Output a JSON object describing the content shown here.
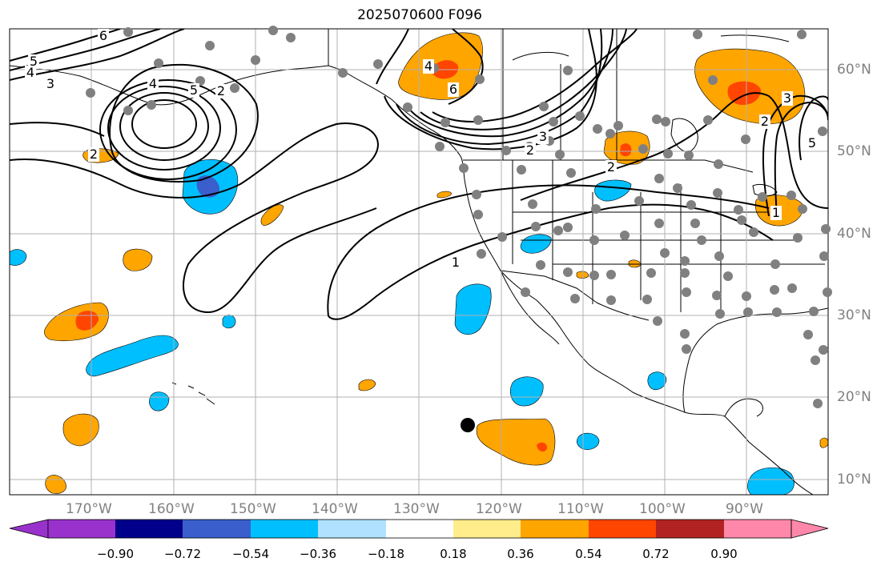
{
  "title": "2025070600 F096",
  "map": {
    "lat_labels": [
      "60°N",
      "50°N",
      "40°N",
      "30°N",
      "20°N",
      "10°N"
    ],
    "lon_labels": [
      "170°W",
      "160°W",
      "150°W",
      "140°W",
      "130°W",
      "120°W",
      "110°W",
      "100°W",
      "90°W"
    ],
    "contour_labels": [
      "6",
      "5",
      "4",
      "3",
      "4",
      "5",
      "2",
      "2",
      "1",
      "2",
      "3",
      "4",
      "6",
      "2",
      "3",
      "2",
      "5",
      "1"
    ],
    "colors": {
      "gridline": "#b0b0b0",
      "contour": "#000000",
      "station": "#808080",
      "marker": "#000000"
    }
  },
  "colorbar": {
    "ticks": [
      "−0.90",
      "−0.72",
      "−0.54",
      "−0.36",
      "−0.18",
      "0.18",
      "0.36",
      "0.54",
      "0.72",
      "0.90"
    ],
    "colors": [
      "#9932cc",
      "#00008b",
      "#3a5fcd",
      "#00bfff",
      "#b0e2ff",
      "#ffffff",
      "#ffec8b",
      "#ffa500",
      "#ff4500",
      "#b22222",
      "#ff88aa"
    ]
  }
}
